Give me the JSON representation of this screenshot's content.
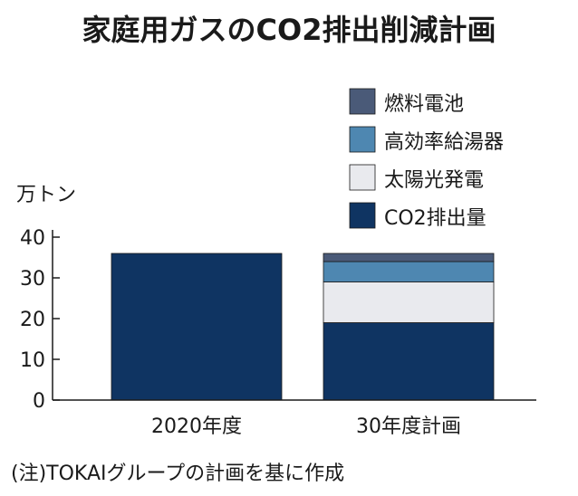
{
  "chart_data": {
    "type": "bar",
    "stacked": true,
    "title": "家庭用ガスのCO2排出削減計画",
    "ylabel": "万トン",
    "xlabel": "",
    "ylim": [
      0,
      40
    ],
    "yticks": [
      "0",
      "10",
      "20",
      "30",
      "40"
    ],
    "categories": [
      "2020年度",
      "30年度計画"
    ],
    "series": [
      {
        "name": "CO2排出量",
        "color": "#0f3462",
        "values": [
          36,
          19
        ]
      },
      {
        "name": "太陽光発電",
        "color": "#e9eaee",
        "values": [
          0,
          10
        ]
      },
      {
        "name": "高効率給湯器",
        "color": "#4e87b1",
        "values": [
          0,
          5
        ]
      },
      {
        "name": "燃料電池",
        "color": "#4a5a78",
        "values": [
          0,
          2
        ]
      }
    ],
    "legend": "top-right",
    "grid": false,
    "note": "(注)TOKAIグループの計画を基に作成"
  }
}
